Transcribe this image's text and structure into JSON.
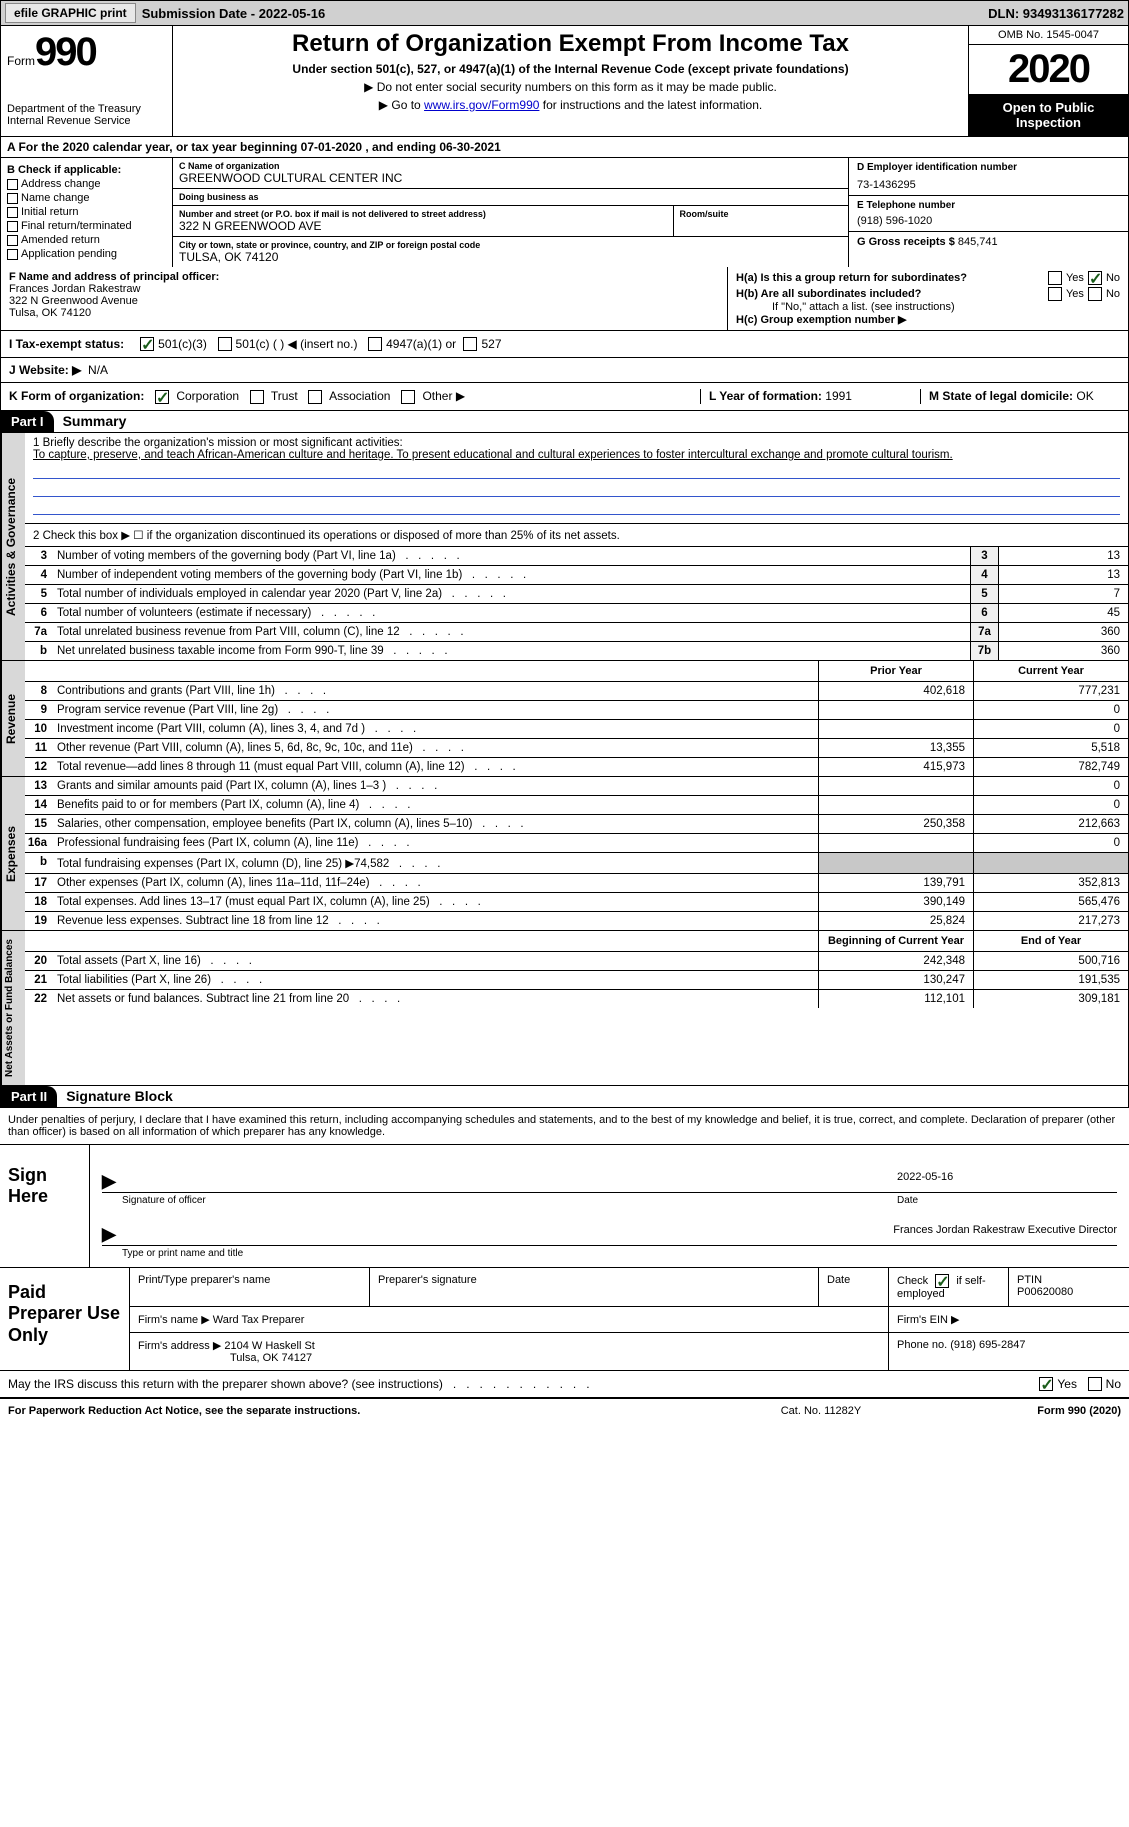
{
  "topbar": {
    "efile": "efile GRAPHIC print",
    "submission": "Submission Date - 2022-05-16",
    "dln": "DLN: 93493136177282"
  },
  "header": {
    "form_label": "Form",
    "form_num": "990",
    "dept": "Department of the Treasury\nInternal Revenue Service",
    "title": "Return of Organization Exempt From Income Tax",
    "sub1": "Under section 501(c), 527, or 4947(a)(1) of the Internal Revenue Code (except private foundations)",
    "sub2": "▶ Do not enter social security numbers on this form as it may be made public.",
    "sub3_pre": "▶ Go to ",
    "sub3_link": "www.irs.gov/Form990",
    "sub3_post": " for instructions and the latest information.",
    "omb": "OMB No. 1545-0047",
    "year": "2020",
    "open": "Open to Public Inspection"
  },
  "row_a": "A For the 2020 calendar year, or tax year beginning 07-01-2020    , and ending 06-30-2021",
  "col_b": {
    "hdr": "B Check if applicable:",
    "items": [
      "Address change",
      "Name change",
      "Initial return",
      "Final return/terminated",
      "Amended return",
      "Application pending"
    ]
  },
  "c": {
    "lbl_name": "C Name of organization",
    "name": "GREENWOOD CULTURAL CENTER INC",
    "lbl_dba": "Doing business as",
    "dba": "",
    "lbl_street": "Number and street (or P.O. box if mail is not delivered to street address)",
    "street": "322 N GREENWOOD AVE",
    "lbl_room": "Room/suite",
    "room": "",
    "lbl_city": "City or town, state or province, country, and ZIP or foreign postal code",
    "city": "TULSA, OK  74120"
  },
  "d": {
    "lbl": "D Employer identification number",
    "val": "73-1436295"
  },
  "e": {
    "lbl": "E Telephone number",
    "val": "(918) 596-1020"
  },
  "g": {
    "lbl": "G Gross receipts $",
    "val": "845,741"
  },
  "f": {
    "lbl": "F Name and address of principal officer:",
    "name": "Frances Jordan Rakestraw",
    "addr1": "322 N Greenwood Avenue",
    "addr2": "Tulsa, OK  74120"
  },
  "h": {
    "a_lbl": "H(a)  Is this a group return for subordinates?",
    "b_lbl": "H(b)  Are all subordinates included?",
    "b_note": "If \"No,\" attach a list. (see instructions)",
    "c_lbl": "H(c)  Group exemption number ▶"
  },
  "i": {
    "lbl": "I   Tax-exempt status:",
    "o1": "501(c)(3)",
    "o2": "501(c) (  ) ◀ (insert no.)",
    "o3": "4947(a)(1) or",
    "o4": "527"
  },
  "j": {
    "lbl": "J   Website: ▶",
    "val": "N/A"
  },
  "k": {
    "lbl": "K Form of organization:",
    "o1": "Corporation",
    "o2": "Trust",
    "o3": "Association",
    "o4": "Other ▶"
  },
  "l": {
    "lbl": "L Year of formation:",
    "val": "1991"
  },
  "m": {
    "lbl": "M State of legal domicile:",
    "val": "OK"
  },
  "part1": {
    "hdr": "Part I",
    "title": "Summary"
  },
  "mission": {
    "lbl": "1   Briefly describe the organization's mission or most significant activities:",
    "txt": "To capture, preserve, and teach African-American culture and heritage. To present educational and cultural experiences to foster intercultural exchange and promote cultural tourism."
  },
  "line2": "2   Check this box ▶ ☐  if the organization discontinued its operations or disposed of more than 25% of its net assets.",
  "sections": {
    "gov": {
      "label": "Activities & Governance",
      "rows": [
        {
          "n": "3",
          "d": "Number of voting members of the governing body (Part VI, line 1a)",
          "b": "3",
          "v": "13"
        },
        {
          "n": "4",
          "d": "Number of independent voting members of the governing body (Part VI, line 1b)",
          "b": "4",
          "v": "13"
        },
        {
          "n": "5",
          "d": "Total number of individuals employed in calendar year 2020 (Part V, line 2a)",
          "b": "5",
          "v": "7"
        },
        {
          "n": "6",
          "d": "Total number of volunteers (estimate if necessary)",
          "b": "6",
          "v": "45"
        },
        {
          "n": "7a",
          "d": "Total unrelated business revenue from Part VIII, column (C), line 12",
          "b": "7a",
          "v": "360"
        },
        {
          "n": "b",
          "d": "Net unrelated business taxable income from Form 990-T, line 39",
          "b": "7b",
          "v": "360"
        }
      ]
    },
    "rev": {
      "label": "Revenue",
      "col1": "Prior Year",
      "col2": "Current Year",
      "rows": [
        {
          "n": "8",
          "d": "Contributions and grants (Part VIII, line 1h)",
          "v1": "402,618",
          "v2": "777,231"
        },
        {
          "n": "9",
          "d": "Program service revenue (Part VIII, line 2g)",
          "v1": "",
          "v2": "0"
        },
        {
          "n": "10",
          "d": "Investment income (Part VIII, column (A), lines 3, 4, and 7d )",
          "v1": "",
          "v2": "0"
        },
        {
          "n": "11",
          "d": "Other revenue (Part VIII, column (A), lines 5, 6d, 8c, 9c, 10c, and 11e)",
          "v1": "13,355",
          "v2": "5,518"
        },
        {
          "n": "12",
          "d": "Total revenue—add lines 8 through 11 (must equal Part VIII, column (A), line 12)",
          "v1": "415,973",
          "v2": "782,749"
        }
      ]
    },
    "exp": {
      "label": "Expenses",
      "rows": [
        {
          "n": "13",
          "d": "Grants and similar amounts paid (Part IX, column (A), lines 1–3 )",
          "v1": "",
          "v2": "0"
        },
        {
          "n": "14",
          "d": "Benefits paid to or for members (Part IX, column (A), line 4)",
          "v1": "",
          "v2": "0"
        },
        {
          "n": "15",
          "d": "Salaries, other compensation, employee benefits (Part IX, column (A), lines 5–10)",
          "v1": "250,358",
          "v2": "212,663"
        },
        {
          "n": "16a",
          "d": "Professional fundraising fees (Part IX, column (A), line 11e)",
          "v1": "",
          "v2": "0"
        },
        {
          "n": "b",
          "d": "Total fundraising expenses (Part IX, column (D), line 25) ▶74,582",
          "v1": "grey",
          "v2": "grey"
        },
        {
          "n": "17",
          "d": "Other expenses (Part IX, column (A), lines 11a–11d, 11f–24e)",
          "v1": "139,791",
          "v2": "352,813"
        },
        {
          "n": "18",
          "d": "Total expenses. Add lines 13–17 (must equal Part IX, column (A), line 25)",
          "v1": "390,149",
          "v2": "565,476"
        },
        {
          "n": "19",
          "d": "Revenue less expenses. Subtract line 18 from line 12",
          "v1": "25,824",
          "v2": "217,273"
        }
      ]
    },
    "net": {
      "label": "Net Assets or Fund Balances",
      "col1": "Beginning of Current Year",
      "col2": "End of Year",
      "rows": [
        {
          "n": "20",
          "d": "Total assets (Part X, line 16)",
          "v1": "242,348",
          "v2": "500,716"
        },
        {
          "n": "21",
          "d": "Total liabilities (Part X, line 26)",
          "v1": "130,247",
          "v2": "191,535"
        },
        {
          "n": "22",
          "d": "Net assets or fund balances. Subtract line 21 from line 20",
          "v1": "112,101",
          "v2": "309,181"
        }
      ]
    }
  },
  "part2": {
    "hdr": "Part II",
    "title": "Signature Block"
  },
  "sig_intro": "Under penalties of perjury, I declare that I have examined this return, including accompanying schedules and statements, and to the best of my knowledge and belief, it is true, correct, and complete. Declaration of preparer (other than officer) is based on all information of which preparer has any knowledge.",
  "sign": {
    "label": "Sign Here",
    "date": "2022-05-16",
    "cap1": "Signature of officer",
    "cap1b": "Date",
    "name": "Frances Jordan Rakestraw  Executive Director",
    "cap2": "Type or print name and title"
  },
  "prep": {
    "label": "Paid Preparer Use Only",
    "h1": "Print/Type preparer's name",
    "h2": "Preparer's signature",
    "h3": "Date",
    "h4_pre": "Check",
    "h4_post": "if self-employed",
    "h5": "PTIN",
    "ptin": "P00620080",
    "firm_lbl": "Firm's name   ▶",
    "firm": "Ward Tax Preparer",
    "ein_lbl": "Firm's EIN ▶",
    "addr_lbl": "Firm's address ▶",
    "addr1": "2104 W Haskell St",
    "addr2": "Tulsa, OK  74127",
    "phone_lbl": "Phone no.",
    "phone": "(918) 695-2847"
  },
  "discuss": "May the IRS discuss this return with the preparer shown above? (see instructions)",
  "footer": {
    "left": "For Paperwork Reduction Act Notice, see the separate instructions.",
    "mid": "Cat. No. 11282Y",
    "right": "Form 990 (2020)"
  }
}
